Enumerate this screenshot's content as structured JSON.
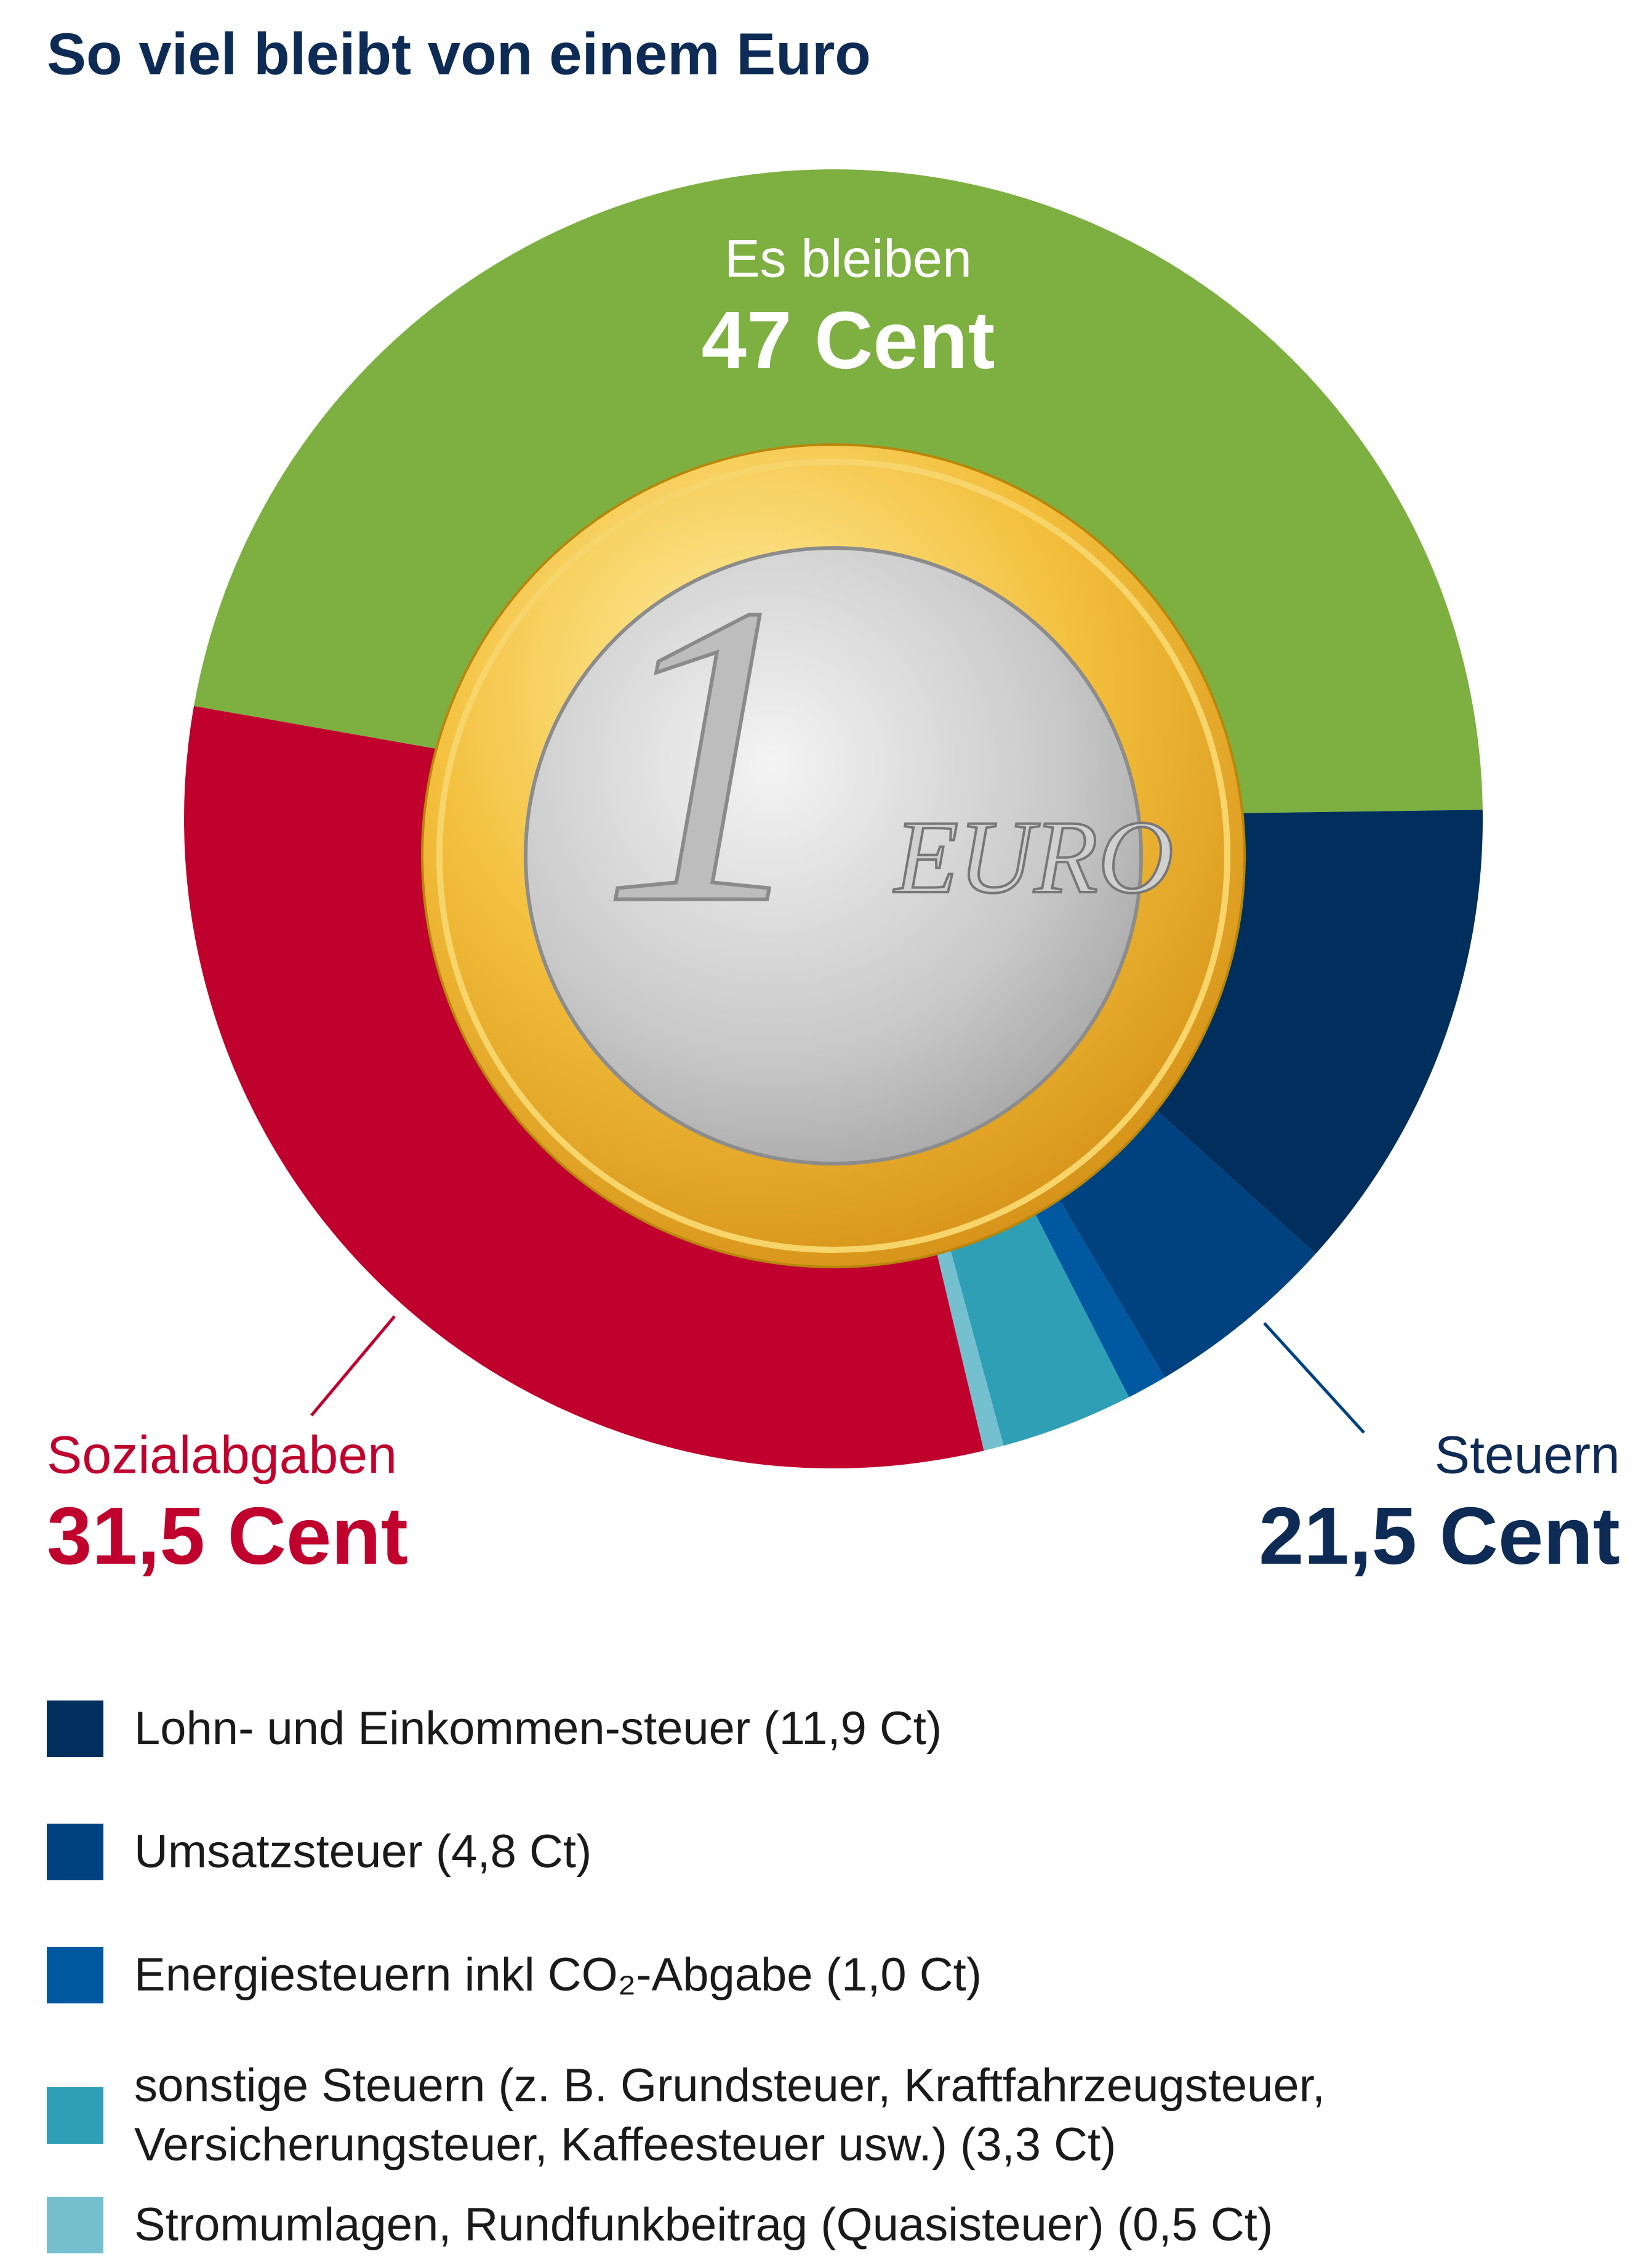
{
  "chart_data": {
    "type": "donut",
    "title": "So viel bleibt von einem Euro",
    "segments": [
      {
        "name": "Es bleiben",
        "value": 47,
        "value_label": "47 Cent",
        "color": "#7db040"
      },
      {
        "name": "Lohn- und Einkommen-steuer (11,9 Ct)",
        "value": 11.9,
        "color": "#002f5d",
        "legend": true
      },
      {
        "name": "Umsatzsteuer (4,8 Ct)",
        "value": 4.8,
        "color": "#00427f",
        "legend": true
      },
      {
        "name": "Energiesteuern inkl CO₂-Abgabe (1,0 Ct)",
        "value": 1.0,
        "color": "#0058a0",
        "legend": true
      },
      {
        "name": "sonstige Steuern (z. B. Grundsteuer, Kraftfahrzeugsteuer, Versicherungsteuer, Kaffeesteuer usw.) (3,3 Ct)",
        "value": 3.3,
        "color": "#2f9fb5",
        "legend": true
      },
      {
        "name": "Stromumlagen, Rundfunkbeitrag (Quasisteuer) (0,5 Ct)",
        "value": 0.5,
        "color": "#75c0cf",
        "legend": true
      },
      {
        "name": "Sozialabgaben",
        "value": 31.5,
        "value_label": "31,5 Cent",
        "color": "#c0002d"
      }
    ],
    "groups": [
      {
        "name": "Steuern",
        "value": 21.5,
        "value_label": "21,5 Cent",
        "color": "#0d2b55"
      }
    ]
  },
  "coin": {
    "numeral": "1",
    "text": "EURO"
  }
}
